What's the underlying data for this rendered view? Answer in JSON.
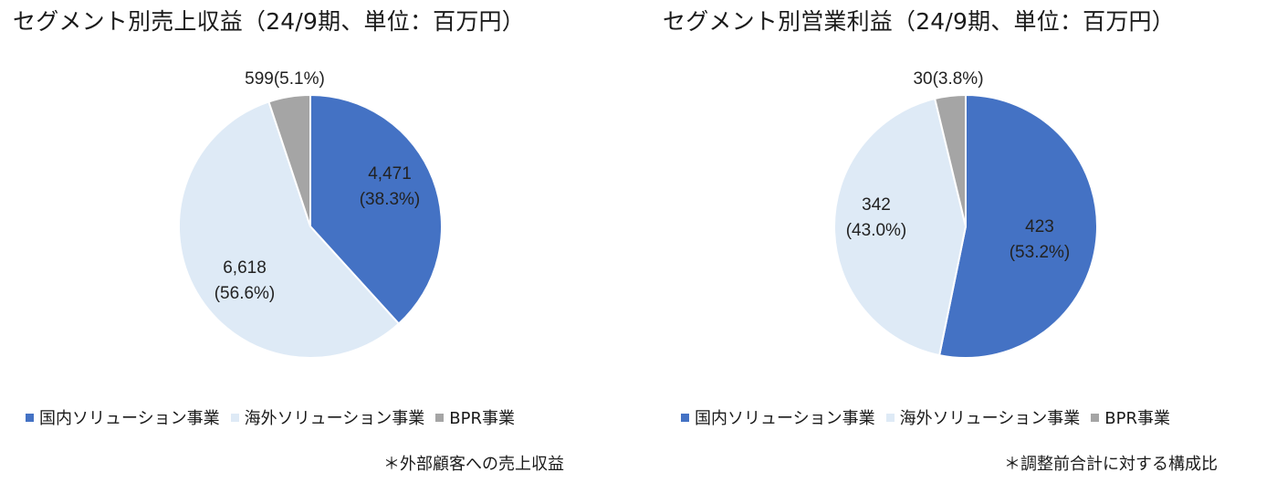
{
  "chart_data": [
    {
      "type": "pie",
      "title": "セグメント別売上収益（24/9期、単位：百万円）",
      "categories": [
        "国内ソリューション事業",
        "海外ソリューション事業",
        "BPR事業"
      ],
      "values": [
        4471,
        6618,
        599
      ],
      "percent": [
        38.3,
        56.6,
        5.1
      ],
      "data_labels": [
        {
          "line1": "4,471",
          "line2": "(38.3%)"
        },
        {
          "line1": "6,618",
          "line2": "(56.6%)"
        },
        {
          "line1": "599(5.1%)",
          "line2": ""
        }
      ],
      "colors": [
        "#4472C4",
        "#DEEAF6",
        "#A5A5A5"
      ],
      "legend": "bottom",
      "note": "＊外部顧客への売上収益"
    },
    {
      "type": "pie",
      "title": "セグメント別営業利益（24/9期、単位：百万円）",
      "categories": [
        "国内ソリューション事業",
        "海外ソリューション事業",
        "BPR事業"
      ],
      "values": [
        423,
        342,
        30
      ],
      "percent": [
        53.2,
        43.0,
        3.8
      ],
      "data_labels": [
        {
          "line1": "423",
          "line2": "(53.2%)"
        },
        {
          "line1": "342",
          "line2": "(43.0%)"
        },
        {
          "line1": "30(3.8%)",
          "line2": ""
        }
      ],
      "colors": [
        "#4472C4",
        "#DEEAF6",
        "#A5A5A5"
      ],
      "legend": "bottom",
      "note": "＊調整前合計に対する構成比"
    }
  ]
}
